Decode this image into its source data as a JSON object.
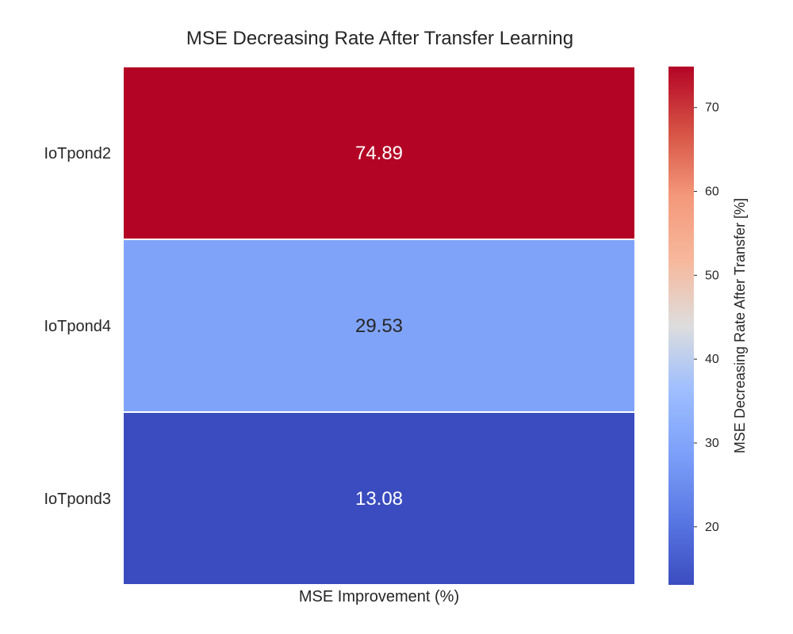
{
  "chart_data": {
    "type": "heatmap",
    "title": "MSE Decreasing Rate After Transfer Learning",
    "xlabel": "MSE Improvement (%)",
    "ylabel": "",
    "rows": [
      "IoTpond2",
      "IoTpond4",
      "IoTpond3"
    ],
    "columns": [
      "MSE Improvement (%)"
    ],
    "values": [
      74.89,
      29.53,
      13.08
    ],
    "value_labels": [
      "74.89",
      "29.53",
      "13.08"
    ],
    "colormap": "coolwarm",
    "vmin": 13.08,
    "vmax": 74.89,
    "colorbar": {
      "label": "MSE Decreasing Rate After Transfer [%]",
      "ticks": [
        20,
        30,
        40,
        50,
        60,
        70
      ],
      "tick_labels": [
        "20",
        "30",
        "40",
        "50",
        "60",
        "70"
      ],
      "position": "right"
    },
    "cell_separator_color": "#ffffff"
  }
}
